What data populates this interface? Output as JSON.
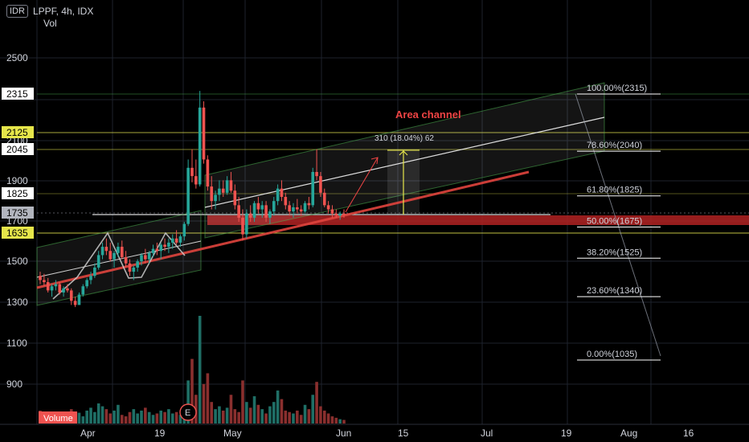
{
  "header": {
    "currency": "IDR",
    "symbol_line": "LPPF, 4h, IDX",
    "volume_indicator": "Vol"
  },
  "colors": {
    "background": "#000000",
    "up": "#26a69a",
    "down": "#ef5350",
    "fib_line": "#ffffff",
    "channel": "#4caf50",
    "support_zone": "#b22222",
    "horizontal_yellow": "#d4d44a",
    "trendline_red": "#e0443e",
    "annotation_red": "#ef4444"
  },
  "axis": {
    "x_ticks": [
      "Apr",
      "19",
      "May",
      "Jun",
      "15",
      "Jul",
      "19",
      "Aug",
      "16"
    ],
    "y_ticks": [
      "2500",
      "2100",
      "1900",
      "1700",
      "1500",
      "1300",
      "1100",
      "900"
    ],
    "y_highlight_labels": [
      "2315",
      "2125",
      "2045",
      "1825",
      "1735",
      "1635"
    ],
    "volume_label": "Volume",
    "earnings_marker": "E"
  },
  "annotations": {
    "channel_title": "Area channel",
    "measure_label": "310 (18.04%) 62"
  },
  "fib_levels": [
    {
      "label": "100.00%(2315)",
      "price": 2315
    },
    {
      "label": "78.60%(2040)",
      "price": 2040
    },
    {
      "label": "61.80%(1825)",
      "price": 1825
    },
    {
      "label": "50.00%(1675)",
      "price": 1675
    },
    {
      "label": "38.20%(1525)",
      "price": 1525
    },
    {
      "label": "23.60%(1340)",
      "price": 1340
    },
    {
      "label": "0.00%(1035)",
      "price": 1035
    }
  ],
  "chart_data": {
    "type": "candlestick",
    "title": "",
    "y_range": [
      780,
      2700
    ],
    "candles": [
      [
        1440,
        1460,
        1400,
        1420
      ],
      [
        1420,
        1450,
        1390,
        1410
      ],
      [
        1410,
        1430,
        1360,
        1370
      ],
      [
        1370,
        1400,
        1340,
        1390
      ],
      [
        1390,
        1420,
        1370,
        1400
      ],
      [
        1400,
        1410,
        1350,
        1360
      ],
      [
        1360,
        1390,
        1340,
        1380
      ],
      [
        1380,
        1400,
        1360,
        1370
      ],
      [
        1370,
        1380,
        1300,
        1320
      ],
      [
        1320,
        1340,
        1290,
        1300
      ],
      [
        1300,
        1360,
        1300,
        1350
      ],
      [
        1350,
        1400,
        1340,
        1390
      ],
      [
        1390,
        1430,
        1380,
        1420
      ],
      [
        1420,
        1460,
        1400,
        1440
      ],
      [
        1440,
        1500,
        1430,
        1480
      ],
      [
        1480,
        1560,
        1470,
        1540
      ],
      [
        1540,
        1600,
        1520,
        1580
      ],
      [
        1580,
        1620,
        1540,
        1560
      ],
      [
        1560,
        1600,
        1510,
        1520
      ],
      [
        1520,
        1560,
        1480,
        1550
      ],
      [
        1550,
        1600,
        1530,
        1580
      ],
      [
        1580,
        1610,
        1520,
        1530
      ],
      [
        1530,
        1560,
        1480,
        1500
      ],
      [
        1500,
        1520,
        1440,
        1460
      ],
      [
        1460,
        1490,
        1420,
        1480
      ],
      [
        1480,
        1520,
        1460,
        1510
      ],
      [
        1510,
        1550,
        1490,
        1540
      ],
      [
        1540,
        1570,
        1500,
        1520
      ],
      [
        1520,
        1560,
        1500,
        1550
      ],
      [
        1550,
        1590,
        1530,
        1570
      ],
      [
        1570,
        1600,
        1540,
        1560
      ],
      [
        1560,
        1600,
        1520,
        1590
      ],
      [
        1590,
        1620,
        1560,
        1580
      ],
      [
        1580,
        1620,
        1550,
        1600
      ],
      [
        1600,
        1640,
        1570,
        1620
      ],
      [
        1620,
        1660,
        1590,
        1600
      ],
      [
        1600,
        1640,
        1580,
        1630
      ],
      [
        1630,
        1700,
        1610,
        1690
      ],
      [
        1690,
        2000,
        1680,
        1960
      ],
      [
        1960,
        2050,
        1890,
        1920
      ],
      [
        1920,
        2000,
        1860,
        1880
      ],
      [
        1880,
        2330,
        1870,
        2250
      ],
      [
        2250,
        2280,
        1980,
        2000
      ],
      [
        2000,
        2020,
        1850,
        1870
      ],
      [
        1870,
        1920,
        1760,
        1800
      ],
      [
        1800,
        1850,
        1760,
        1830
      ],
      [
        1830,
        1900,
        1800,
        1860
      ],
      [
        1860,
        1900,
        1820,
        1840
      ],
      [
        1840,
        1920,
        1830,
        1900
      ],
      [
        1900,
        1940,
        1840,
        1850
      ],
      [
        1850,
        1880,
        1760,
        1780
      ],
      [
        1780,
        1820,
        1700,
        1720
      ],
      [
        1720,
        1760,
        1610,
        1640
      ],
      [
        1640,
        1760,
        1620,
        1740
      ],
      [
        1740,
        1780,
        1700,
        1720
      ],
      [
        1720,
        1800,
        1700,
        1790
      ],
      [
        1790,
        1820,
        1740,
        1760
      ],
      [
        1760,
        1800,
        1720,
        1780
      ],
      [
        1780,
        1800,
        1700,
        1720
      ],
      [
        1720,
        1760,
        1690,
        1750
      ],
      [
        1750,
        1820,
        1730,
        1800
      ],
      [
        1800,
        1880,
        1780,
        1860
      ],
      [
        1860,
        1900,
        1800,
        1820
      ],
      [
        1820,
        1840,
        1760,
        1780
      ],
      [
        1780,
        1800,
        1730,
        1750
      ],
      [
        1750,
        1790,
        1720,
        1770
      ],
      [
        1770,
        1810,
        1740,
        1760
      ],
      [
        1760,
        1780,
        1730,
        1750
      ],
      [
        1750,
        1800,
        1740,
        1790
      ],
      [
        1790,
        1820,
        1760,
        1780
      ],
      [
        1780,
        1960,
        1770,
        1940
      ],
      [
        1940,
        2050,
        1900,
        1920
      ],
      [
        1920,
        1940,
        1820,
        1840
      ],
      [
        1840,
        1860,
        1770,
        1780
      ],
      [
        1780,
        1800,
        1740,
        1760
      ],
      [
        1760,
        1780,
        1720,
        1740
      ],
      [
        1740,
        1760,
        1720,
        1730
      ],
      [
        1730,
        1750,
        1710,
        1740
      ],
      [
        1740,
        1760,
        1720,
        1735
      ]
    ],
    "volume": [
      18,
      10,
      8,
      12,
      6,
      9,
      14,
      8,
      20,
      12,
      15,
      10,
      18,
      22,
      16,
      28,
      24,
      20,
      14,
      18,
      26,
      12,
      10,
      16,
      20,
      14,
      18,
      22,
      16,
      12,
      14,
      18,
      16,
      20,
      14,
      16,
      12,
      24,
      60,
      90,
      40,
      150,
      55,
      70,
      30,
      20,
      24,
      18,
      22,
      40,
      20,
      16,
      60,
      30,
      22,
      38,
      26,
      20,
      14,
      24,
      30,
      46,
      34,
      18,
      16,
      14,
      18,
      12,
      26,
      20,
      40,
      58,
      24,
      18,
      14,
      10,
      8,
      6,
      5
    ]
  }
}
